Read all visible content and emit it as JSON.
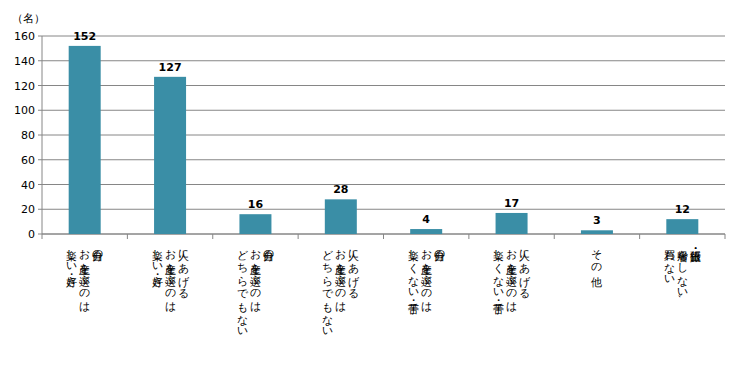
{
  "chart_data": {
    "type": "bar",
    "ylabel": "（名）",
    "categories": [
      "自分の\nお土産を選ぶのは\n楽しい・好き",
      "人にあげる\nお土産を選ぶのは\n楽しい・好き",
      "自分の\nお土産を選ぶのは\nどちらでもない",
      "人にあげる\nお土産を選ぶのは\nどちらでもない",
      "自分の\nお土産を選ぶのは\n楽しくない・苦手",
      "人にあげる\nお土産を選ぶのは\n楽しくない・苦手",
      "その他",
      "旅行・出張・\n帰省をしない、\n買わない"
    ],
    "values": [
      152,
      127,
      16,
      28,
      4,
      17,
      3,
      12
    ],
    "color": "#3a8ea6",
    "ylim": [
      0,
      160
    ],
    "yticks": [
      0,
      20,
      40,
      60,
      80,
      100,
      120,
      140,
      160
    ],
    "grid": true,
    "data_labels": true
  }
}
